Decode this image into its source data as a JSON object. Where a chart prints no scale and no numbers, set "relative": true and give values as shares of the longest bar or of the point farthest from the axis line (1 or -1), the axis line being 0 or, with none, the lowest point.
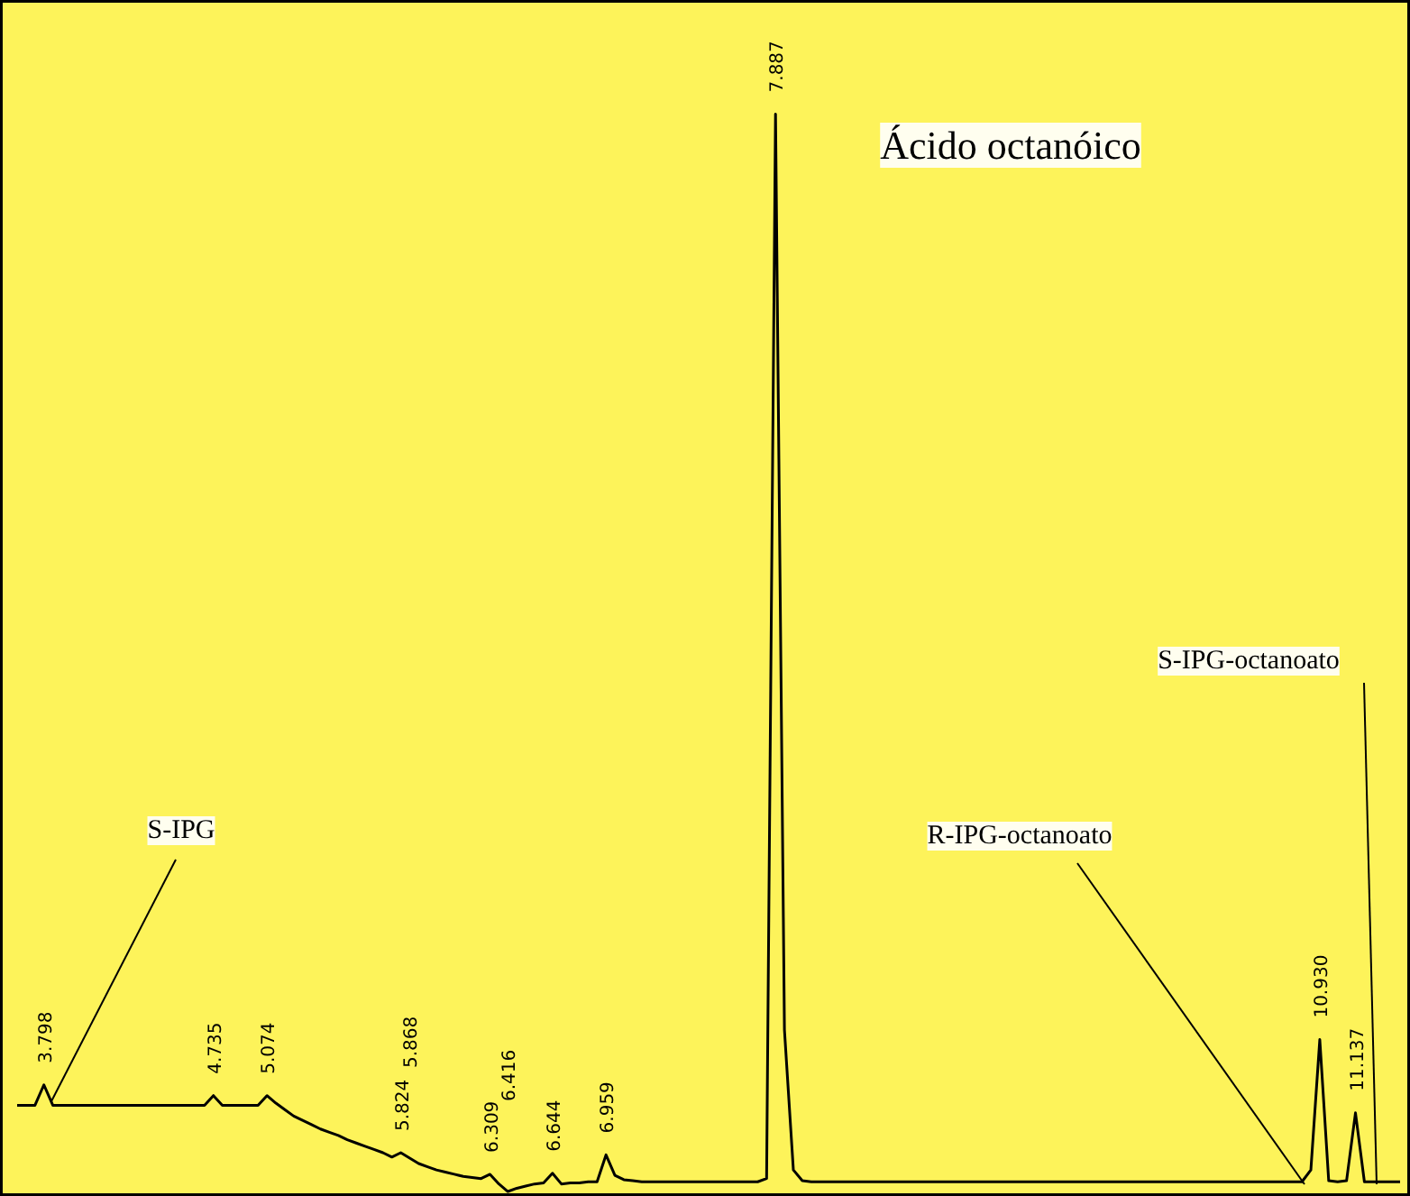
{
  "chart_data": {
    "type": "line",
    "relative": true,
    "tick_labels": false,
    "grid": false,
    "marker": "none",
    "line_style": "solid",
    "categories": [
      null,
      null,
      null,
      null,
      null,
      null,
      null,
      null,
      null,
      null,
      null,
      null,
      null,
      null,
      null,
      null,
      null,
      null,
      null,
      null,
      null,
      null,
      null,
      null,
      null,
      null,
      null,
      null,
      null,
      null,
      null,
      null,
      null,
      null,
      null,
      null,
      null,
      null,
      null,
      null,
      null,
      null,
      null,
      null,
      null,
      null,
      null,
      null,
      null,
      null,
      null,
      null,
      null,
      null,
      null,
      null,
      null,
      null,
      null,
      null,
      null,
      null,
      null,
      null,
      null,
      null,
      null,
      null,
      null,
      null,
      null,
      null,
      null,
      null,
      null,
      null,
      null,
      null,
      null,
      null,
      null,
      null,
      null,
      null,
      null,
      null,
      null,
      null,
      null,
      null,
      null,
      null,
      null,
      null,
      null,
      null,
      null,
      null,
      null,
      null,
      null,
      null,
      null,
      null,
      null,
      null,
      null,
      null,
      null,
      null,
      null,
      null,
      null,
      null,
      null,
      null,
      null,
      null,
      null,
      null,
      null,
      null,
      null,
      null,
      null,
      null,
      null,
      null,
      null,
      null,
      null,
      null,
      null,
      null,
      null,
      null,
      null,
      null,
      null,
      null,
      null,
      null,
      null,
      null,
      null,
      null,
      null,
      null,
      null,
      null,
      null,
      null,
      null,
      null,
      null,
      null
    ],
    "series": [
      {
        "color": "#000000",
        "values": [
          0.08,
          0.08,
          0.08,
          0.099,
          0.08,
          0.08,
          0.08,
          0.08,
          0.08,
          0.08,
          0.08,
          0.08,
          0.08,
          0.08,
          0.08,
          0.08,
          0.08,
          0.08,
          0.08,
          0.08,
          0.08,
          0.08,
          0.089,
          0.08,
          0.08,
          0.08,
          0.08,
          0.08,
          0.089,
          0.082,
          0.076,
          0.07,
          0.066,
          0.062,
          0.058,
          0.055,
          0.052,
          0.048,
          0.045,
          0.042,
          0.039,
          0.036,
          0.032,
          0.036,
          0.031,
          0.026,
          0.023,
          0.02,
          0.018,
          0.016,
          0.014,
          0.013,
          0.012,
          0.016,
          0.007,
          0,
          0.003,
          0.005,
          0.007,
          0.008,
          0.017,
          0.007,
          0.008,
          0.008,
          0.009,
          0.009,
          0.034,
          0.015,
          0.011,
          0.01,
          0.009,
          0.009,
          0.009,
          0.009,
          0.009,
          0.009,
          0.009,
          0.009,
          0.009,
          0.009,
          0.009,
          0.009,
          0.009,
          0.009,
          0.012,
          1,
          0.15,
          0.02,
          0.01,
          0.009,
          0.009,
          0.009,
          0.009,
          0.009,
          0.009,
          0.009,
          0.009,
          0.009,
          0.009,
          0.009,
          0.009,
          0.009,
          0.009,
          0.009,
          0.009,
          0.009,
          0.009,
          0.009,
          0.009,
          0.009,
          0.009,
          0.009,
          0.009,
          0.009,
          0.009,
          0.009,
          0.009,
          0.009,
          0.009,
          0.009,
          0.009,
          0.009,
          0.009,
          0.009,
          0.009,
          0.009,
          0.009,
          0.009,
          0.009,
          0.009,
          0.009,
          0.009,
          0.009,
          0.009,
          0.009,
          0.009,
          0.009,
          0.009,
          0.009,
          0.009,
          0.009,
          0.009,
          0.009,
          0.009,
          0.009,
          0.02,
          0.141,
          0.01,
          0.009,
          0.01,
          0.073,
          0.009,
          0.009,
          0.009,
          0.009,
          0.009
        ]
      }
    ],
    "annotations": [
      "3.798",
      "4.735",
      "5.074",
      "5.824",
      "5.868",
      "6.309",
      "6.416",
      "6.644",
      "6.959",
      "7.887",
      "10.930",
      "11.137",
      "S-IPG",
      "Ácido octanóico",
      "R-IPG-octanoato",
      "S-IPG-octanoato"
    ]
  }
}
